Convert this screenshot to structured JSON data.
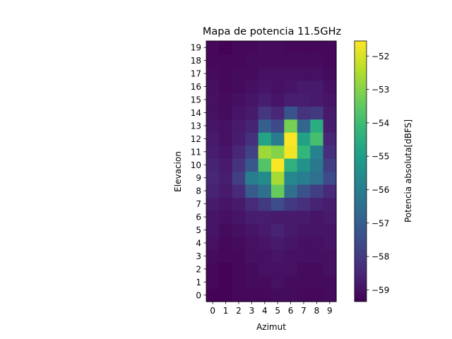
{
  "chart_data": {
    "type": "heatmap",
    "title": "Mapa de potencia 11.5GHz",
    "xlabel": "Azimut",
    "ylabel": "Elevacion",
    "colorbar_label": "Potencia absoluta[dBFS]",
    "colormap": "viridis",
    "x_ticks": [
      "0",
      "1",
      "2",
      "3",
      "4",
      "5",
      "6",
      "7",
      "8",
      "9"
    ],
    "y_ticks": [
      "0",
      "1",
      "2",
      "3",
      "4",
      "5",
      "6",
      "7",
      "8",
      "9",
      "10",
      "11",
      "12",
      "13",
      "14",
      "15",
      "16",
      "17",
      "18",
      "19"
    ],
    "colorbar_ticks": [
      "−52",
      "−53",
      "−54",
      "−55",
      "−56",
      "−57",
      "−58",
      "−59"
    ],
    "colorbar_tick_values": [
      -52,
      -53,
      -54,
      -55,
      -56,
      -57,
      -58,
      -59
    ],
    "vmin": -59.35,
    "vmax": -51.55,
    "z_description": "power (dBFS) per azimut column x elevacion row; rows index 0..19",
    "z": [
      [
        -59.3,
        -59.3,
        -59.2,
        -59.2,
        -59.2,
        -59.1,
        -59.1,
        -59.2,
        -59.2,
        -59.1
      ],
      [
        -59.2,
        -59.3,
        -59.2,
        -59.1,
        -59.1,
        -59.0,
        -59.1,
        -59.1,
        -59.1,
        -59.1
      ],
      [
        -59.2,
        -59.3,
        -59.2,
        -59.1,
        -59.0,
        -59.0,
        -59.0,
        -59.1,
        -59.1,
        -59.0
      ],
      [
        -59.1,
        -59.2,
        -59.2,
        -59.0,
        -59.0,
        -58.9,
        -59.0,
        -59.0,
        -59.0,
        -59.0
      ],
      [
        -59.0,
        -59.2,
        -59.1,
        -59.0,
        -58.9,
        -58.8,
        -58.9,
        -59.0,
        -59.0,
        -58.9
      ],
      [
        -58.9,
        -59.1,
        -59.0,
        -58.9,
        -58.8,
        -58.6,
        -58.8,
        -58.9,
        -58.9,
        -58.9
      ],
      [
        -58.9,
        -59.0,
        -58.9,
        -58.7,
        -58.7,
        -58.8,
        -58.8,
        -58.8,
        -58.9,
        -58.8
      ],
      [
        -58.8,
        -58.9,
        -58.8,
        -58.4,
        -58.0,
        -57.5,
        -58.0,
        -58.3,
        -58.6,
        -58.7
      ],
      [
        -58.6,
        -58.8,
        -58.4,
        -57.1,
        -56.5,
        -53.4,
        -56.5,
        -57.4,
        -57.9,
        -58.4
      ],
      [
        -58.5,
        -58.7,
        -57.9,
        -56.0,
        -55.6,
        -52.6,
        -55.7,
        -56.0,
        -56.5,
        -57.6
      ],
      [
        -58.6,
        -58.8,
        -58.2,
        -57.2,
        -53.7,
        -51.6,
        -54.4,
        -55.4,
        -56.2,
        -57.9
      ],
      [
        -58.7,
        -58.9,
        -58.5,
        -57.8,
        -52.7,
        -53.0,
        -51.7,
        -54.2,
        -55.9,
        -58.3
      ],
      [
        -58.8,
        -59.0,
        -58.7,
        -58.3,
        -54.8,
        -56.1,
        -51.6,
        -54.9,
        -53.9,
        -58.5
      ],
      [
        -58.9,
        -59.0,
        -58.8,
        -58.6,
        -57.0,
        -57.6,
        -53.2,
        -56.8,
        -54.5,
        -58.7
      ],
      [
        -59.0,
        -59.1,
        -58.9,
        -58.8,
        -58.1,
        -58.5,
        -57.3,
        -58.2,
        -58.0,
        -58.8
      ],
      [
        -59.0,
        -59.1,
        -59.0,
        -58.9,
        -58.7,
        -58.9,
        -58.7,
        -58.7,
        -58.8,
        -58.9
      ],
      [
        -59.0,
        -59.2,
        -59.1,
        -59.0,
        -58.9,
        -59.0,
        -58.9,
        -58.8,
        -58.8,
        -59.0
      ],
      [
        -59.1,
        -59.2,
        -59.1,
        -59.1,
        -59.0,
        -59.0,
        -59.0,
        -59.0,
        -59.0,
        -59.1
      ],
      [
        -59.2,
        -59.2,
        -59.2,
        -59.1,
        -59.1,
        -59.1,
        -59.1,
        -59.1,
        -59.1,
        -59.2
      ],
      [
        -59.2,
        -59.3,
        -59.2,
        -59.2,
        -59.1,
        -59.1,
        -59.2,
        -59.2,
        -59.2,
        -59.2
      ]
    ]
  }
}
